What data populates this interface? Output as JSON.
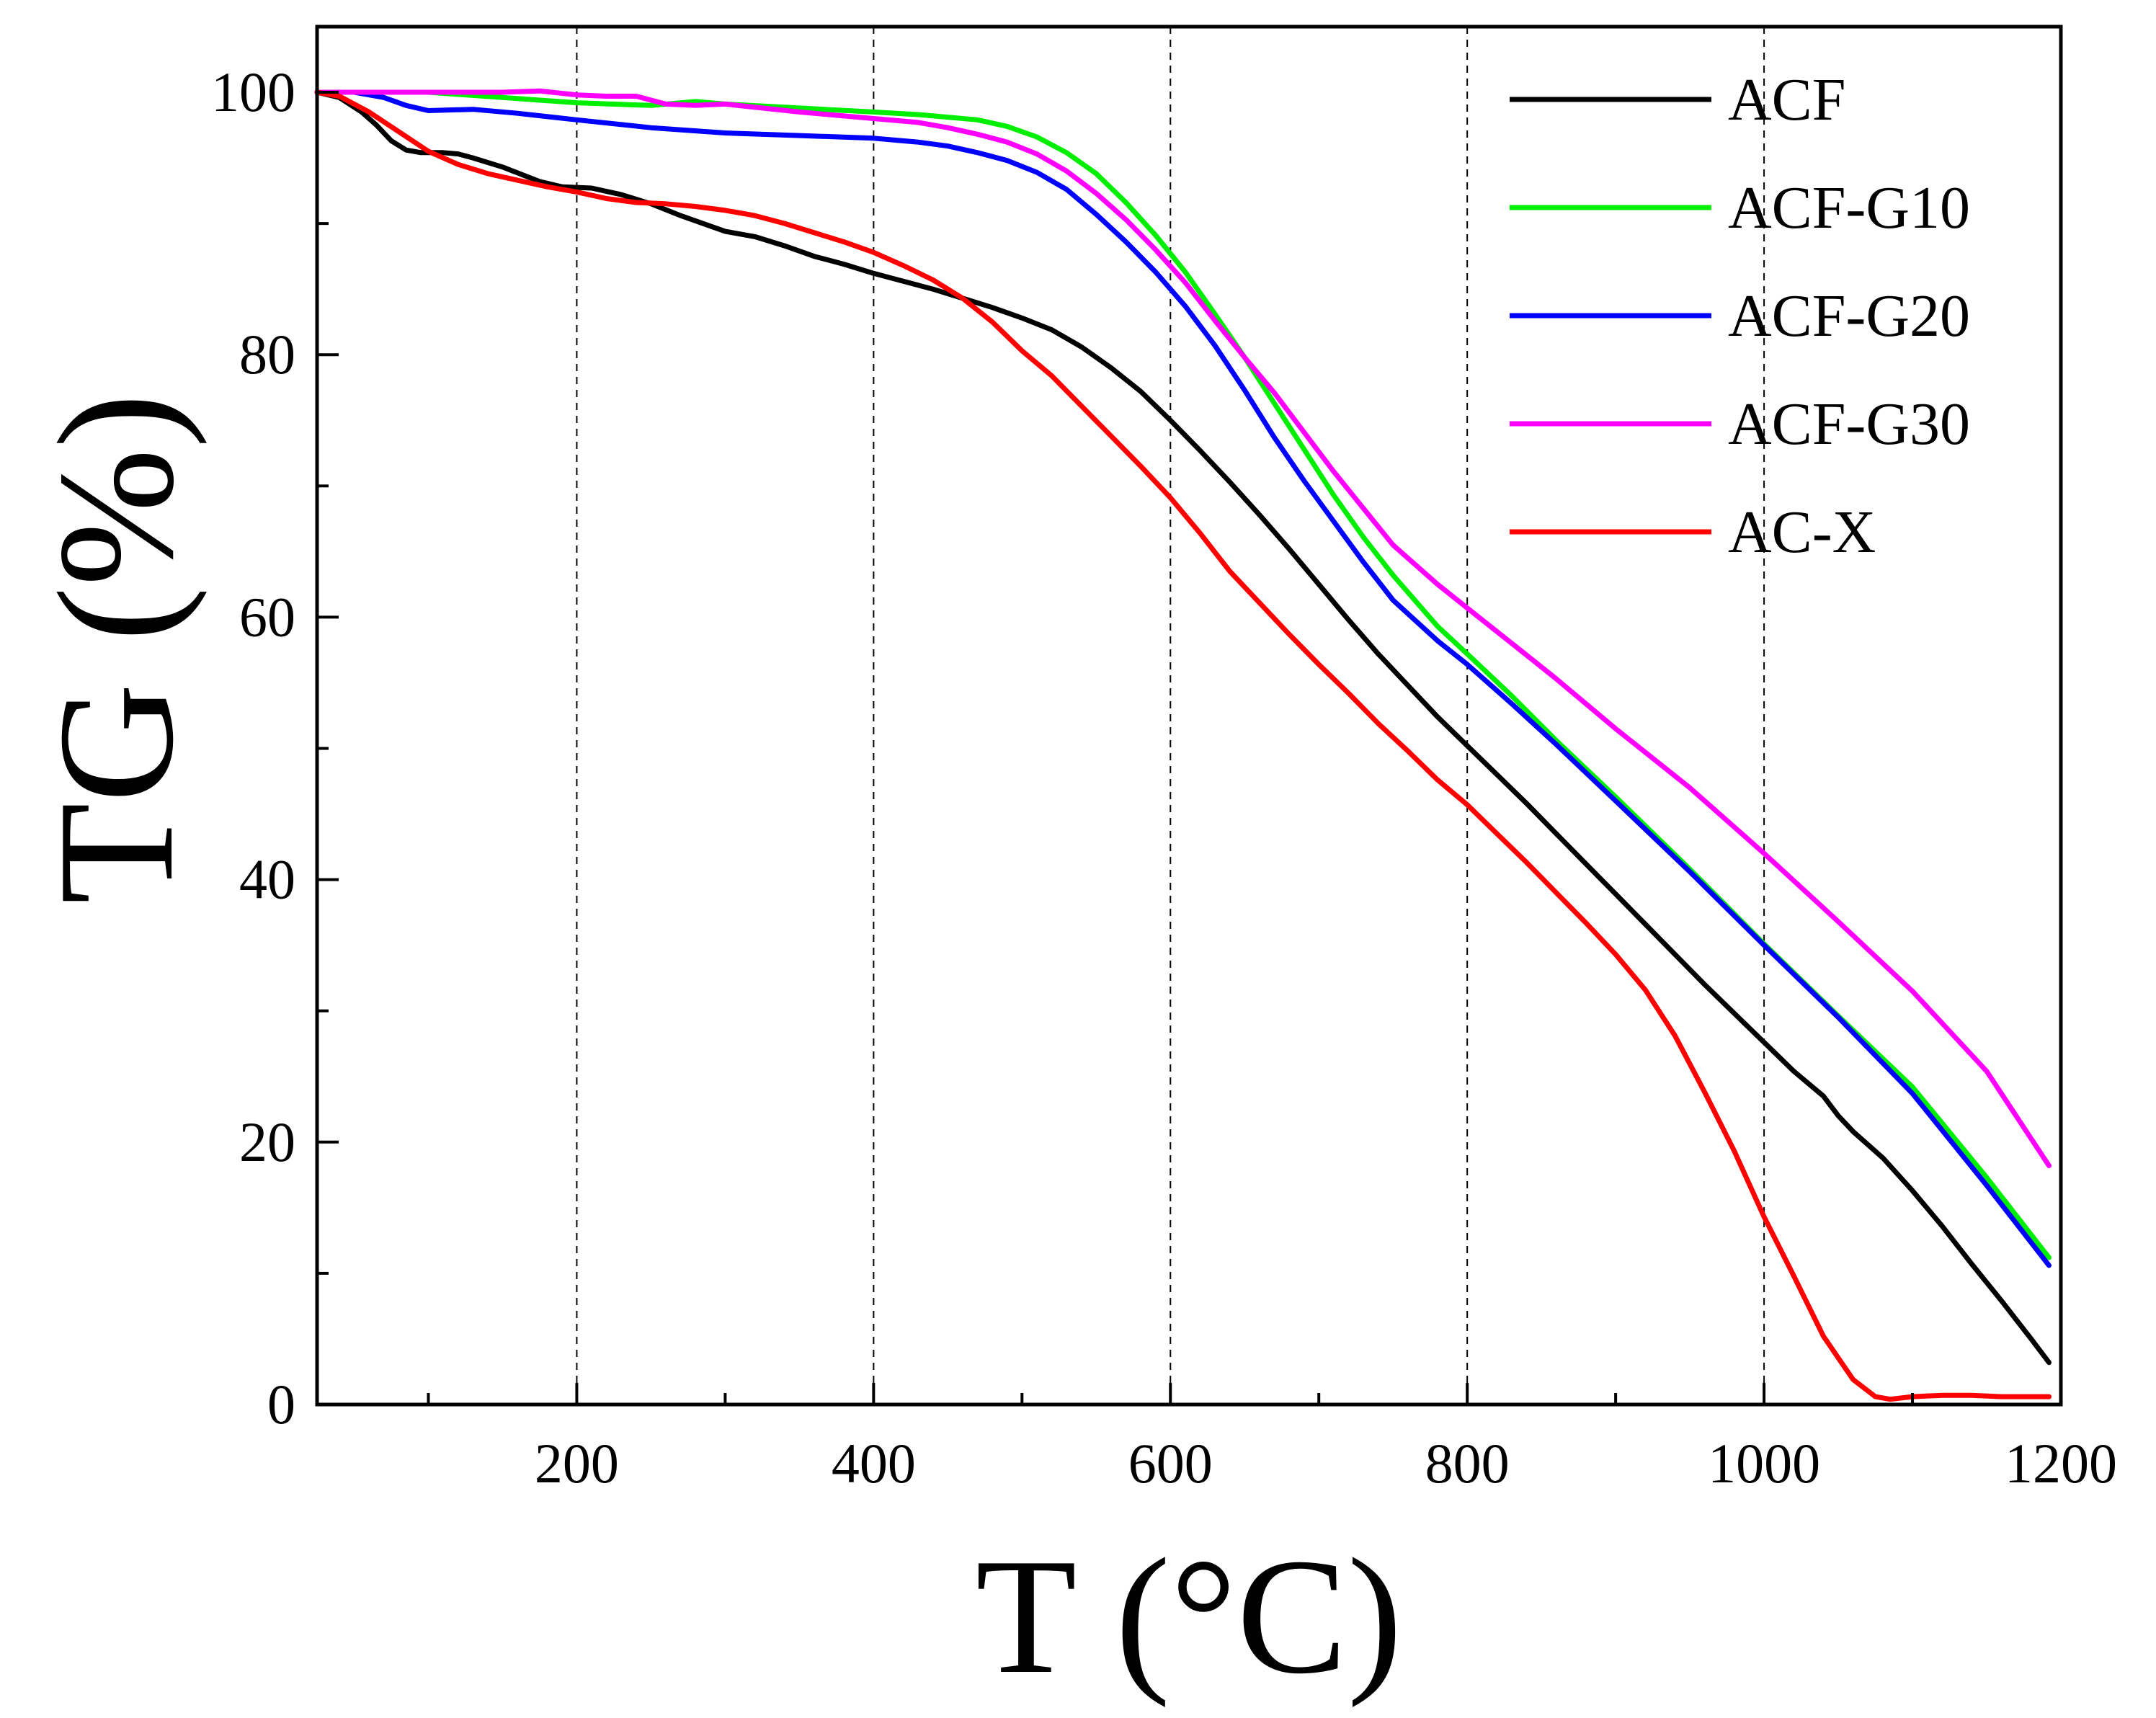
{
  "chart_data": {
    "type": "line",
    "title": "",
    "xlabel": "T (°C)",
    "ylabel": "TG (%)",
    "xlim": [
      25,
      1200
    ],
    "ylim": [
      0,
      105
    ],
    "x_ticks": [
      200,
      400,
      600,
      800,
      1000,
      1200
    ],
    "x_tick_labels": [
      "200",
      "400",
      "600",
      "800",
      "1000",
      "1200"
    ],
    "x_minor_ticks": [
      100,
      300,
      500,
      700,
      900,
      1100
    ],
    "y_ticks": [
      0,
      20,
      40,
      60,
      80,
      100
    ],
    "y_tick_labels": [
      "0",
      "20",
      "40",
      "60",
      "80",
      "100"
    ],
    "y_minor_ticks": [
      10,
      30,
      50,
      70,
      90
    ],
    "grid": "vertical dashed at 200, 400, 600, 800, 1000",
    "legend_position": "top-right",
    "series": [
      {
        "name": "ACF",
        "color": "#000000",
        "x": [
          25,
          40,
          55,
          65,
          75,
          85,
          95,
          110,
          120,
          130,
          150,
          175,
          190,
          210,
          230,
          250,
          270,
          300,
          320,
          340,
          360,
          380,
          400,
          420,
          440,
          460,
          480,
          500,
          520,
          540,
          560,
          580,
          600,
          620,
          640,
          660,
          680,
          700,
          720,
          740,
          760,
          780,
          800,
          820,
          840,
          860,
          880,
          900,
          920,
          940,
          960,
          980,
          1000,
          1020,
          1040,
          1050,
          1060,
          1080,
          1100,
          1120,
          1140,
          1160,
          1180,
          1192
        ],
        "values": [
          100,
          99.6,
          98.5,
          97.5,
          96.3,
          95.6,
          95.4,
          95.4,
          95.3,
          95.0,
          94.3,
          93.2,
          92.8,
          92.7,
          92.2,
          91.5,
          90.6,
          89.4,
          89.0,
          88.3,
          87.5,
          86.9,
          86.2,
          85.6,
          85.0,
          84.3,
          83.6,
          82.8,
          81.9,
          80.6,
          79.0,
          77.2,
          75.0,
          72.7,
          70.3,
          67.8,
          65.2,
          62.5,
          59.8,
          57.2,
          54.8,
          52.4,
          50.2,
          48.0,
          45.8,
          43.5,
          41.2,
          38.9,
          36.6,
          34.3,
          32.0,
          29.8,
          27.6,
          25.4,
          23.5,
          22.0,
          20.8,
          18.8,
          16.3,
          13.6,
          10.7,
          7.9,
          5.0,
          3.2
        ]
      },
      {
        "name": "ACF-G10",
        "color": "#00ee00",
        "x": [
          25,
          50,
          100,
          150,
          200,
          250,
          280,
          300,
          350,
          400,
          430,
          450,
          470,
          490,
          510,
          530,
          550,
          570,
          590,
          610,
          630,
          650,
          670,
          690,
          710,
          730,
          750,
          780,
          800,
          830,
          860,
          900,
          950,
          1000,
          1050,
          1100,
          1150,
          1192
        ],
        "values": [
          100,
          100,
          100,
          99.6,
          99.2,
          99.0,
          99.3,
          99.1,
          98.8,
          98.5,
          98.3,
          98.1,
          97.9,
          97.4,
          96.6,
          95.4,
          93.8,
          91.6,
          89.1,
          86.3,
          83.1,
          79.8,
          76.3,
          72.8,
          69.3,
          66.1,
          63.2,
          59.3,
          57.2,
          54.0,
          50.6,
          46.3,
          40.8,
          35.1,
          29.6,
          24.2,
          17.3,
          11.2
        ]
      },
      {
        "name": "ACF-G20",
        "color": "#0000ff",
        "x": [
          25,
          50,
          70,
          85,
          100,
          130,
          160,
          200,
          250,
          300,
          350,
          400,
          430,
          450,
          470,
          490,
          510,
          530,
          550,
          570,
          590,
          610,
          630,
          650,
          670,
          690,
          710,
          730,
          750,
          780,
          800,
          830,
          860,
          900,
          950,
          1000,
          1050,
          1100,
          1150,
          1192
        ],
        "values": [
          100,
          100,
          99.6,
          99.0,
          98.6,
          98.7,
          98.4,
          97.9,
          97.3,
          96.9,
          96.7,
          96.5,
          96.2,
          95.9,
          95.4,
          94.8,
          93.9,
          92.6,
          90.7,
          88.6,
          86.3,
          83.7,
          80.7,
          77.3,
          73.7,
          70.4,
          67.3,
          64.2,
          61.3,
          58.2,
          56.4,
          53.4,
          50.3,
          46.0,
          40.6,
          35.0,
          29.5,
          23.7,
          16.7,
          10.6
        ]
      },
      {
        "name": "ACF-G30",
        "color": "#ff00ff",
        "x": [
          25,
          50,
          100,
          150,
          175,
          200,
          220,
          240,
          260,
          280,
          300,
          350,
          400,
          430,
          450,
          470,
          490,
          510,
          530,
          550,
          570,
          590,
          610,
          630,
          650,
          670,
          690,
          710,
          730,
          750,
          780,
          800,
          830,
          860,
          900,
          950,
          1000,
          1050,
          1100,
          1150,
          1192
        ],
        "values": [
          100,
          100,
          100,
          100,
          100.1,
          99.8,
          99.7,
          99.7,
          99.1,
          99.0,
          99.1,
          98.5,
          98.0,
          97.7,
          97.3,
          96.8,
          96.2,
          95.3,
          94.0,
          92.3,
          90.3,
          88.0,
          85.5,
          82.6,
          79.8,
          77.1,
          74.1,
          71.1,
          68.3,
          65.5,
          62.5,
          60.7,
          58.0,
          55.3,
          51.5,
          47.0,
          42.0,
          36.8,
          31.5,
          25.4,
          18.2
        ]
      },
      {
        "name": "AC-X",
        "color": "#ff0000",
        "x": [
          25,
          40,
          60,
          80,
          100,
          120,
          140,
          160,
          180,
          200,
          220,
          240,
          260,
          280,
          300,
          320,
          340,
          360,
          380,
          400,
          420,
          440,
          460,
          480,
          500,
          520,
          540,
          560,
          580,
          600,
          620,
          640,
          660,
          680,
          700,
          720,
          740,
          760,
          780,
          800,
          820,
          840,
          860,
          880,
          900,
          920,
          940,
          960,
          980,
          1000,
          1020,
          1040,
          1060,
          1075,
          1085,
          1100,
          1120,
          1140,
          1160,
          1192
        ],
        "values": [
          100,
          99.7,
          98.5,
          97.0,
          95.5,
          94.5,
          93.8,
          93.3,
          92.8,
          92.4,
          91.9,
          91.6,
          91.5,
          91.3,
          91.0,
          90.6,
          90.0,
          89.3,
          88.6,
          87.8,
          86.8,
          85.7,
          84.3,
          82.5,
          80.3,
          78.4,
          76.1,
          73.8,
          71.5,
          69.1,
          66.4,
          63.5,
          61.1,
          58.7,
          56.4,
          54.2,
          51.9,
          49.8,
          47.6,
          45.7,
          43.5,
          41.3,
          39.0,
          36.7,
          34.3,
          31.6,
          28.1,
          23.8,
          19.3,
          14.3,
          9.8,
          5.2,
          1.9,
          0.6,
          0.4,
          0.6,
          0.7,
          0.7,
          0.6,
          0.6
        ]
      }
    ]
  }
}
